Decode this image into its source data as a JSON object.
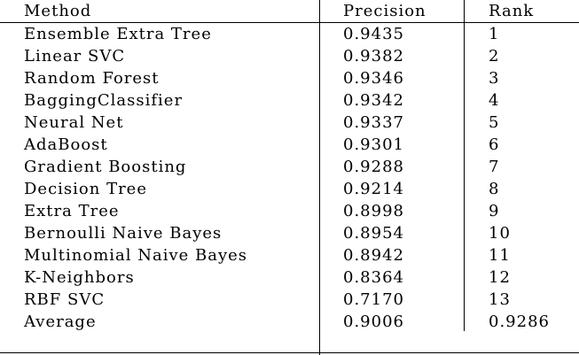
{
  "table": {
    "headers": {
      "method": "Method",
      "precision": "Precision",
      "rank": "Rank"
    },
    "rows": [
      {
        "method": "Ensemble Extra Tree",
        "precision": "0.9435",
        "rank": "1"
      },
      {
        "method": "Linear SVC",
        "precision": "0.9382",
        "rank": "2"
      },
      {
        "method": "Random Forest",
        "precision": "0.9346",
        "rank": "3"
      },
      {
        "method": "BaggingClassifier",
        "precision": "0.9342",
        "rank": "4"
      },
      {
        "method": "Neural Net",
        "precision": "0.9337",
        "rank": "5"
      },
      {
        "method": "AdaBoost",
        "precision": "0.9301",
        "rank": "6"
      },
      {
        "method": "Gradient Boosting",
        "precision": "0.9288",
        "rank": "7"
      },
      {
        "method": "Decision Tree",
        "precision": "0.9214",
        "rank": "8"
      },
      {
        "method": "Extra Tree",
        "precision": "0.8998",
        "rank": "9"
      },
      {
        "method": "Bernoulli Naive Bayes",
        "precision": "0.8954",
        "rank": "10"
      },
      {
        "method": "Multinomial Naive Bayes",
        "precision": "0.8942",
        "rank": "11"
      },
      {
        "method": "K-Neighbors",
        "precision": "0.8364",
        "rank": "12"
      },
      {
        "method": "RBF SVC",
        "precision": "0.7170",
        "rank": "13"
      },
      {
        "method": "Average",
        "precision": "0.9006",
        "rank": "0.9286"
      }
    ]
  }
}
